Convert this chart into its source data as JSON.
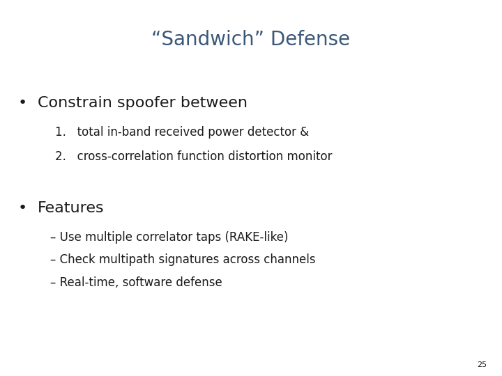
{
  "title": "“Sandwich” Defense",
  "title_color": "#3b5878",
  "title_fontsize": 20,
  "background_color": "#ffffff",
  "text_color": "#1a1a1a",
  "bullet1_text": "Constrain spoofer between",
  "bullet1_fontsize": 16,
  "sub1_1": "1.   total in-band received power detector &",
  "sub1_2": "2.   cross-correlation function distortion monitor",
  "sub_fontsize": 12,
  "bullet2_text": "Features",
  "bullet2_fontsize": 16,
  "sub2_1": "– Use multiple correlator taps (RAKE-like)",
  "sub2_2": "– Check multipath signatures across channels",
  "sub2_3": "– Real-time, software defense",
  "sub2_fontsize": 12,
  "page_number": "25",
  "page_fontsize": 8,
  "bullet_char": "•"
}
